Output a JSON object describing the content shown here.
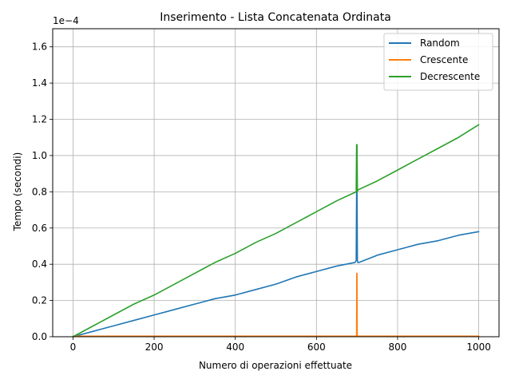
{
  "chart_data": {
    "type": "line",
    "title": "Inserimento - Lista Concatenata Ordinata",
    "xlabel": "Numero di operazioni effettuate",
    "ylabel": "Tempo (secondi)",
    "y_offset_label": "1e−4",
    "xlim": [
      -50,
      1050
    ],
    "ylim": [
      0,
      1.7
    ],
    "y_units_multiplier": 0.0001,
    "xticks": [
      0,
      200,
      400,
      600,
      800,
      1000
    ],
    "xtick_labels": [
      "0",
      "200",
      "400",
      "600",
      "800",
      "1000"
    ],
    "yticks": [
      0.0,
      0.2,
      0.4,
      0.6,
      0.8,
      1.0,
      1.2,
      1.4,
      1.6
    ],
    "ytick_labels": [
      "0.0",
      "0.2",
      "0.4",
      "0.6",
      "0.8",
      "1.0",
      "1.2",
      "1.4",
      "1.6"
    ],
    "grid": true,
    "legend_position": "top-right",
    "series": [
      {
        "name": "Random",
        "color": "#1f77b4",
        "x": [
          0,
          50,
          100,
          150,
          200,
          250,
          300,
          350,
          400,
          450,
          500,
          550,
          600,
          650,
          695,
          698,
          699,
          700,
          701,
          702,
          705,
          750,
          800,
          850,
          900,
          950,
          1000
        ],
        "values": [
          0.0,
          0.03,
          0.06,
          0.09,
          0.12,
          0.15,
          0.18,
          0.21,
          0.23,
          0.26,
          0.29,
          0.33,
          0.36,
          0.39,
          0.41,
          0.42,
          0.8,
          0.8,
          0.42,
          0.41,
          0.41,
          0.45,
          0.48,
          0.51,
          0.53,
          0.56,
          0.58
        ]
      },
      {
        "name": "Crescente",
        "color": "#ff7f0e",
        "x": [
          0,
          100,
          200,
          300,
          400,
          500,
          600,
          699,
          699.5,
          700,
          700.5,
          701,
          800,
          900,
          1000
        ],
        "values": [
          0.003,
          0.003,
          0.003,
          0.003,
          0.003,
          0.003,
          0.003,
          0.003,
          0.35,
          0.35,
          0.003,
          0.003,
          0.003,
          0.003,
          0.003
        ]
      },
      {
        "name": "Decrescente",
        "color": "#2ca02c",
        "x": [
          0,
          50,
          100,
          150,
          200,
          250,
          300,
          350,
          400,
          450,
          500,
          550,
          600,
          650,
          698,
          699,
          700,
          701,
          702,
          750,
          800,
          850,
          900,
          950,
          1000
        ],
        "values": [
          0.0,
          0.06,
          0.12,
          0.18,
          0.23,
          0.29,
          0.35,
          0.41,
          0.46,
          0.52,
          0.57,
          0.63,
          0.69,
          0.75,
          0.8,
          1.06,
          1.06,
          0.8,
          0.81,
          0.86,
          0.92,
          0.98,
          1.04,
          1.1,
          1.17
        ]
      }
    ]
  }
}
